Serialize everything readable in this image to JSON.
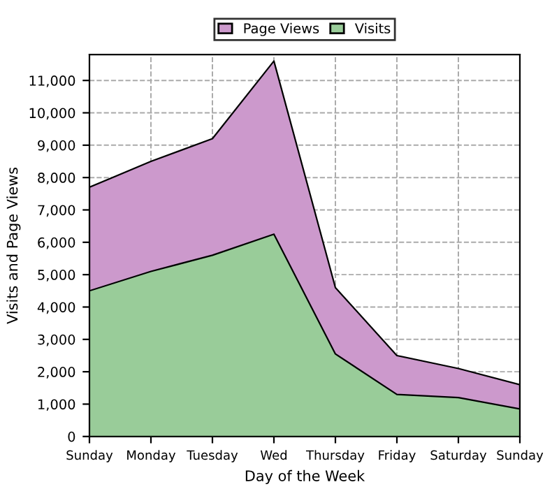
{
  "chart_data": {
    "type": "area",
    "xlabel": "Day of the Week",
    "ylabel": "Visits and Page Views",
    "categories": [
      "Sunday",
      "Monday",
      "Tuesday",
      "Wed",
      "Thursday",
      "Friday",
      "Saturday",
      "Sunday"
    ],
    "series": [
      {
        "name": "Page Views",
        "color": "#cc99cc",
        "values": [
          7700,
          8500,
          9200,
          11600,
          4600,
          2500,
          2100,
          1600
        ]
      },
      {
        "name": "Visits",
        "color": "#99cc99",
        "values": [
          4500,
          5100,
          5600,
          6250,
          2550,
          1300,
          1200,
          850
        ]
      }
    ],
    "ylim": [
      0,
      11800
    ],
    "yticks": [
      0,
      {
        "value": 1000,
        "label": "1,000"
      },
      {
        "value": 2000,
        "label": "2,000"
      },
      {
        "value": 3000,
        "label": "3,000"
      },
      {
        "value": 4000,
        "label": "4,000"
      },
      {
        "value": 5000,
        "label": "5,000"
      },
      {
        "value": 6000,
        "label": "6,000"
      },
      {
        "value": 7000,
        "label": "7,000"
      },
      {
        "value": 8000,
        "label": "8,000"
      },
      {
        "value": 9000,
        "label": "9,000"
      },
      {
        "value": 10000,
        "label": "10,000"
      },
      {
        "value": 11000,
        "label": "11,000"
      }
    ],
    "grid": true,
    "legend": "top"
  }
}
